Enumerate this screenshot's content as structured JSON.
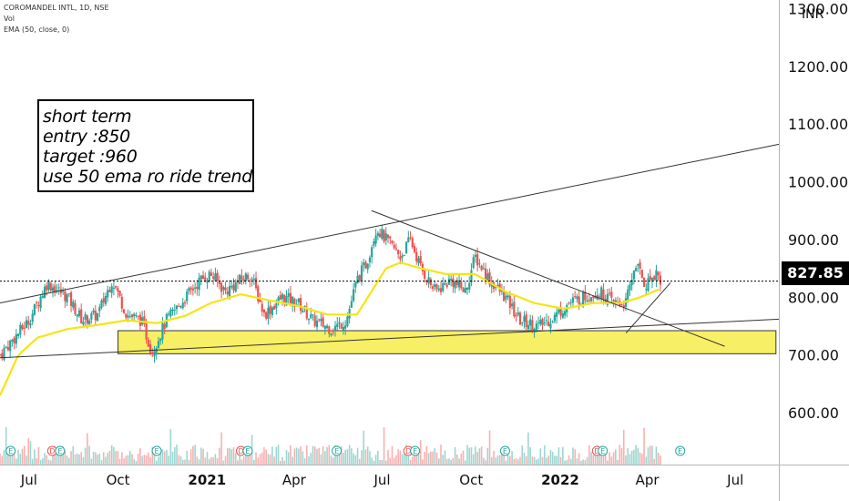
{
  "legend": {
    "symbol": "COROMANDEL INTL, 1D, NSE",
    "volume": "Vol",
    "indicator": "EMA (50, close, 0)"
  },
  "currency": "INR",
  "last_price": "827.85",
  "annotation": {
    "lines": [
      "short term",
      "entry :850",
      "target :960",
      "use 50 ema ro ride trend"
    ]
  },
  "colors": {
    "up": "#26a69a",
    "down": "#ef5350",
    "ema": "#f5e512",
    "zone_fill": "#f7ee55",
    "trendline": "#333333",
    "axis_text": "#111111"
  },
  "chart_data": {
    "type": "candlestick",
    "y_ticks": [
      "1300.00",
      "1200.00",
      "1100.00",
      "1000.00",
      "900.00",
      "800.00",
      "700.00",
      "600.00"
    ],
    "y_tick_values": [
      1300,
      1200,
      1100,
      1000,
      900,
      800,
      700,
      600
    ],
    "ylim": [
      510,
      1315
    ],
    "x_ticks": [
      "Jul",
      "Oct",
      "2021",
      "Apr",
      "Jul",
      "Oct",
      "2022",
      "Apr",
      "Jul"
    ],
    "x_tick_dates": [
      "2020-07",
      "2020-10",
      "2021-01",
      "2021-04",
      "2021-07",
      "2021-10",
      "2022-01",
      "2022-04",
      "2022-07"
    ],
    "xlim": [
      "2020-06-01",
      "2022-08-15"
    ],
    "close_path": [
      [
        "2020-06-01",
        700
      ],
      [
        "2020-07-01",
        760
      ],
      [
        "2020-07-20",
        825
      ],
      [
        "2020-08-10",
        800
      ],
      [
        "2020-08-25",
        760
      ],
      [
        "2020-09-10",
        770
      ],
      [
        "2020-09-25",
        830
      ],
      [
        "2020-10-10",
        770
      ],
      [
        "2020-10-25",
        760
      ],
      [
        "2020-11-05",
        705
      ],
      [
        "2020-11-20",
        760
      ],
      [
        "2020-12-10",
        800
      ],
      [
        "2020-12-25",
        830
      ],
      [
        "2021-01-05",
        840
      ],
      [
        "2021-01-20",
        810
      ],
      [
        "2021-02-05",
        830
      ],
      [
        "2021-02-15",
        840
      ],
      [
        "2021-03-01",
        770
      ],
      [
        "2021-03-20",
        800
      ],
      [
        "2021-04-05",
        790
      ],
      [
        "2021-04-20",
        760
      ],
      [
        "2021-05-10",
        745
      ],
      [
        "2021-05-25",
        760
      ],
      [
        "2021-06-05",
        830
      ],
      [
        "2021-06-15",
        860
      ],
      [
        "2021-06-25",
        920
      ],
      [
        "2021-07-05",
        900
      ],
      [
        "2021-07-20",
        870
      ],
      [
        "2021-07-30",
        900
      ],
      [
        "2021-08-10",
        850
      ],
      [
        "2021-08-25",
        810
      ],
      [
        "2021-09-10",
        830
      ],
      [
        "2021-09-25",
        810
      ],
      [
        "2021-10-05",
        870
      ],
      [
        "2021-10-20",
        830
      ],
      [
        "2021-11-05",
        800
      ],
      [
        "2021-11-20",
        760
      ],
      [
        "2021-12-10",
        750
      ],
      [
        "2021-12-25",
        765
      ],
      [
        "2022-01-10",
        790
      ],
      [
        "2022-01-25",
        800
      ],
      [
        "2022-02-10",
        810
      ],
      [
        "2022-02-25",
        790
      ],
      [
        "2022-03-10",
        790
      ],
      [
        "2022-03-20",
        860
      ],
      [
        "2022-03-30",
        820
      ],
      [
        "2022-04-10",
        845
      ],
      [
        "2022-04-15",
        828
      ]
    ],
    "ema_path": [
      [
        "2020-06-01",
        630
      ],
      [
        "2020-06-20",
        700
      ],
      [
        "2020-07-10",
        730
      ],
      [
        "2020-08-10",
        745
      ],
      [
        "2020-09-10",
        752
      ],
      [
        "2020-10-10",
        760
      ],
      [
        "2020-11-10",
        755
      ],
      [
        "2020-12-10",
        768
      ],
      [
        "2021-01-05",
        790
      ],
      [
        "2021-02-05",
        805
      ],
      [
        "2021-03-05",
        795
      ],
      [
        "2021-04-05",
        785
      ],
      [
        "2021-05-05",
        770
      ],
      [
        "2021-06-05",
        770
      ],
      [
        "2021-06-20",
        810
      ],
      [
        "2021-07-05",
        850
      ],
      [
        "2021-07-20",
        860
      ],
      [
        "2021-08-10",
        850
      ],
      [
        "2021-09-05",
        840
      ],
      [
        "2021-10-05",
        840
      ],
      [
        "2021-11-05",
        810
      ],
      [
        "2021-12-05",
        790
      ],
      [
        "2022-01-05",
        780
      ],
      [
        "2022-02-05",
        790
      ],
      [
        "2022-03-05",
        790
      ],
      [
        "2022-03-25",
        800
      ],
      [
        "2022-04-15",
        815
      ]
    ],
    "trendlines": [
      {
        "name": "upper-channel",
        "from": [
          "2020-06-01",
          790
        ],
        "to": [
          "2022-08-15",
          1065
        ]
      },
      {
        "name": "lower-channel",
        "from": [
          "2020-06-01",
          695
        ],
        "to": [
          "2022-08-15",
          762
        ]
      },
      {
        "name": "descending-resistance",
        "from": [
          "2021-06-20",
          950
        ],
        "to": [
          "2022-06-20",
          715
        ]
      },
      {
        "name": "rising-support",
        "from": [
          "2022-03-10",
          738
        ],
        "to": [
          "2022-04-25",
          825
        ]
      }
    ],
    "zone": {
      "from": "2020-10-01",
      "to": "2022-08-12",
      "low": 702,
      "high": 742
    },
    "price_line": 827.85,
    "event_markers": [
      "E",
      "D",
      "E",
      "E",
      "D",
      "E",
      "E",
      "D",
      "E",
      "E",
      "D",
      "E",
      "E"
    ]
  }
}
